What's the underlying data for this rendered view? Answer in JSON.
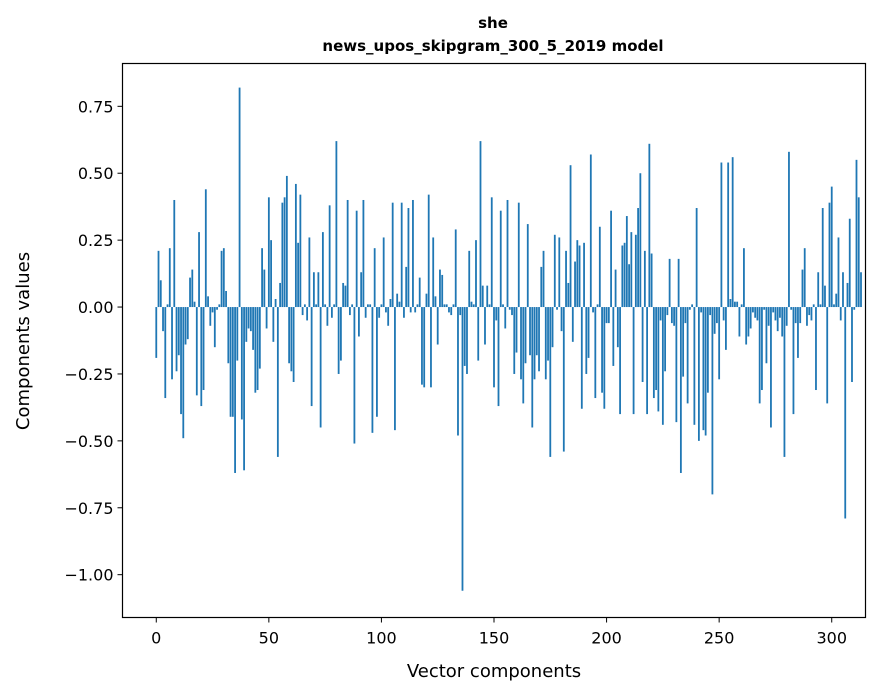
{
  "chart_data": {
    "type": "bar",
    "title": "she",
    "subtitle": "news_upos_skipgram_300_5_2019 model",
    "xlabel": "Vector components",
    "ylabel": "Components values",
    "xlim": [
      -15,
      315
    ],
    "ylim": [
      -1.16,
      0.91
    ],
    "xticks": [
      0,
      50,
      100,
      150,
      200,
      250,
      300
    ],
    "xtick_labels": [
      "0",
      "50",
      "100",
      "150",
      "200",
      "250",
      "300"
    ],
    "yticks": [
      0.75,
      0.5,
      0.25,
      0.0,
      -0.25,
      -0.5,
      -0.75,
      -1.0
    ],
    "ytick_labels": [
      "0.75",
      "0.50",
      "0.25",
      "0.00",
      "−0.25",
      "−0.50",
      "−0.75",
      "−1.00"
    ],
    "bar_color": "#1f77b4",
    "values": [
      -0.19,
      0.21,
      0.1,
      -0.09,
      -0.34,
      0.01,
      0.22,
      -0.27,
      0.4,
      -0.24,
      -0.18,
      -0.4,
      -0.49,
      -0.14,
      -0.12,
      0.11,
      0.14,
      0.02,
      -0.33,
      0.28,
      -0.37,
      -0.31,
      0.44,
      0.04,
      -0.07,
      -0.02,
      -0.15,
      -0.01,
      0.01,
      0.21,
      0.22,
      0.06,
      -0.21,
      -0.41,
      -0.41,
      -0.62,
      -0.2,
      0.82,
      -0.42,
      -0.61,
      -0.13,
      -0.08,
      -0.09,
      -0.16,
      -0.32,
      -0.31,
      -0.23,
      0.22,
      0.14,
      -0.08,
      0.41,
      0.25,
      -0.13,
      0.03,
      -0.56,
      0.09,
      0.39,
      0.41,
      0.49,
      -0.21,
      -0.24,
      -0.28,
      0.46,
      0.24,
      0.42,
      -0.03,
      0.01,
      -0.05,
      0.26,
      -0.37,
      0.13,
      0.01,
      0.13,
      -0.45,
      0.28,
      0.01,
      -0.07,
      0.38,
      -0.04,
      0.01,
      0.62,
      -0.25,
      -0.2,
      0.09,
      0.08,
      0.4,
      -0.03,
      0.01,
      -0.51,
      0.36,
      -0.11,
      0.13,
      0.4,
      -0.04,
      0.01,
      0.01,
      -0.47,
      0.22,
      -0.41,
      -0.04,
      0.01,
      0.26,
      -0.02,
      -0.07,
      0.03,
      0.39,
      -0.46,
      0.05,
      0.02,
      0.39,
      -0.04,
      0.15,
      0.37,
      -0.02,
      0.4,
      -0.02,
      0.01,
      0.11,
      -0.29,
      -0.3,
      0.05,
      0.42,
      -0.3,
      0.26,
      0.04,
      -0.14,
      0.14,
      0.12,
      0.01,
      0.01,
      -0.02,
      -0.03,
      0.01,
      0.29,
      -0.48,
      -0.03,
      -1.06,
      -0.22,
      -0.25,
      0.21,
      0.02,
      0.01,
      0.25,
      -0.2,
      0.62,
      0.08,
      -0.14,
      0.08,
      0.01,
      0.41,
      -0.3,
      -0.05,
      -0.37,
      0.36,
      0.01,
      -0.08,
      0.4,
      -0.01,
      -0.03,
      -0.25,
      -0.17,
      0.39,
      -0.27,
      -0.36,
      -0.21,
      0.31,
      -0.18,
      -0.45,
      -0.27,
      -0.18,
      -0.24,
      0.15,
      0.21,
      -0.27,
      -0.2,
      -0.56,
      -0.15,
      0.27,
      -0.01,
      0.26,
      -0.09,
      -0.54,
      0.21,
      0.09,
      0.53,
      -0.13,
      0.17,
      0.25,
      0.23,
      -0.38,
      0.24,
      -0.25,
      -0.19,
      0.57,
      -0.02,
      -0.34,
      0.01,
      0.3,
      -0.32,
      -0.38,
      -0.06,
      -0.06,
      0.36,
      -0.22,
      0.14,
      -0.15,
      -0.4,
      0.23,
      0.24,
      0.34,
      0.16,
      0.28,
      -0.4,
      0.27,
      0.37,
      0.5,
      -0.28,
      0.21,
      -0.4,
      0.61,
      0.2,
      -0.34,
      -0.31,
      -0.39,
      -0.05,
      -0.44,
      -0.24,
      -0.03,
      0.18,
      -0.06,
      -0.07,
      -0.43,
      0.18,
      -0.62,
      -0.26,
      -0.06,
      -0.36,
      -0.01,
      0.01,
      -0.44,
      0.37,
      -0.5,
      -0.02,
      -0.46,
      -0.48,
      -0.32,
      -0.03,
      -0.7,
      -0.1,
      -0.06,
      -0.27,
      0.54,
      -0.05,
      -0.16,
      0.54,
      0.03,
      0.56,
      0.02,
      0.02,
      -0.11,
      0.01,
      0.22,
      -0.14,
      -0.11,
      -0.08,
      -0.02,
      -0.04,
      -0.05,
      -0.36,
      -0.31,
      -0.01,
      -0.21,
      -0.07,
      -0.45,
      -0.02,
      -0.05,
      -0.09,
      -0.04,
      -0.11,
      -0.56,
      -0.07,
      0.58,
      -0.01,
      -0.4,
      -0.06,
      -0.19,
      -0.06,
      0.14,
      0.22,
      -0.07,
      -0.03,
      -0.05,
      0.01,
      -0.31,
      0.13,
      0.01,
      0.37,
      0.08,
      -0.36,
      0.39,
      0.45,
      0.01,
      0.05,
      0.26,
      -0.05,
      0.13,
      -0.79,
      0.09,
      0.33,
      -0.28,
      -0.01,
      0.55,
      0.41,
      0.13
    ]
  }
}
